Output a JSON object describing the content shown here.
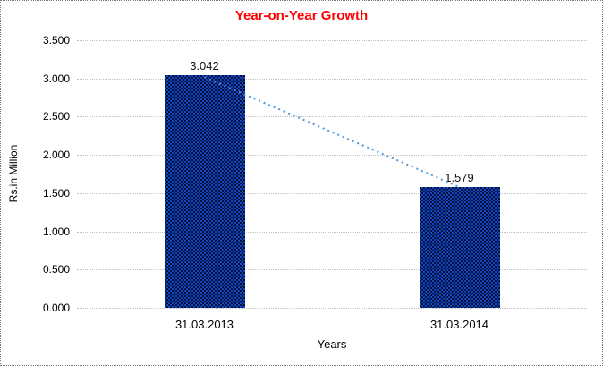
{
  "title": {
    "text": "Year-on-Year Growth",
    "color": "#ff0000"
  },
  "chart_data": {
    "type": "bar",
    "title": "Year-on-Year Growth",
    "categories": [
      "31.03.2013",
      "31.03.2014"
    ],
    "values": [
      3.042,
      1.579
    ],
    "value_labels": [
      "3.042",
      "1.579"
    ],
    "xlabel": "Years",
    "ylabel": "Rs.in Million",
    "ylim": [
      0,
      3.5
    ],
    "ytick_step": 0.5,
    "yticks": [
      "0.000",
      "0.500",
      "1.000",
      "1.500",
      "2.000",
      "2.500",
      "3.000",
      "3.500"
    ],
    "grid": true,
    "gridline_style": "dotted",
    "legend": "none",
    "bar_color": "#0a2570",
    "bar_pattern_color": "#1247c4",
    "trendline": {
      "style": "dotted",
      "color": "#4f97dc",
      "from": "31.03.2013",
      "to": "31.03.2014"
    }
  }
}
